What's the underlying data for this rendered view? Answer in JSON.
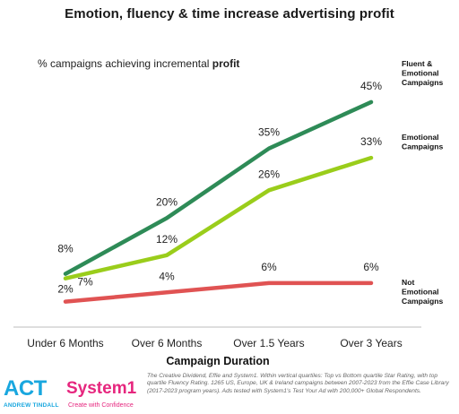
{
  "chart_data": {
    "type": "line",
    "title": "Emotion, fluency & time increase advertising profit",
    "subtitle": {
      "prefix": "% campaigns achieving incremental ",
      "emphasis": "profit"
    },
    "xlabel": "Campaign Duration",
    "ylabel": "",
    "categories": [
      "Under 6 Months",
      "Over 6 Months",
      "Over 1.5 Years",
      "Over 3 Years"
    ],
    "ylim": [
      0,
      50
    ],
    "grid": false,
    "legend": "right, inline labels",
    "series": [
      {
        "name": "Fluent & Emotional Campaigns",
        "label_lines": [
          "Fluent &",
          "Emotional",
          "Campaigns"
        ],
        "values": [
          8,
          20,
          35,
          45
        ],
        "labels": [
          "8%",
          "20%",
          "35%",
          "45%"
        ],
        "color": "#2e8b57"
      },
      {
        "name": "Emotional Campaigns",
        "label_lines": [
          "Emotional",
          "Campaigns"
        ],
        "values": [
          7,
          12,
          26,
          33
        ],
        "labels": [
          "7%",
          "12%",
          "26%",
          "33%"
        ],
        "color": "#9acd1b"
      },
      {
        "name": "Not Emotional Campaigns",
        "label_lines": [
          "Not",
          "Emotional",
          "Campaigns"
        ],
        "values": [
          2,
          4,
          6,
          6
        ],
        "labels": [
          "2%",
          "4%",
          "6%",
          "6%"
        ],
        "color": "#e05353"
      }
    ]
  },
  "footer": {
    "act_logo": "ACT",
    "act_subtitle": "ANDREW TINDALL",
    "system1_logo": "System1",
    "system1_tagline": "Create with Confidence",
    "source_note": "The Creative Dividend, Effie and System1. Within vertical quartiles: Top vs Bottom quartile Star Rating, with top quartile Fluency Rating. 1265 US, Europe, UK & Ireland campaigns between 2007-2023 from the Effie Case Library (2017-2023 program years). Ads tested with System1's Test Your Ad with 200,000+ Global Respondents."
  }
}
